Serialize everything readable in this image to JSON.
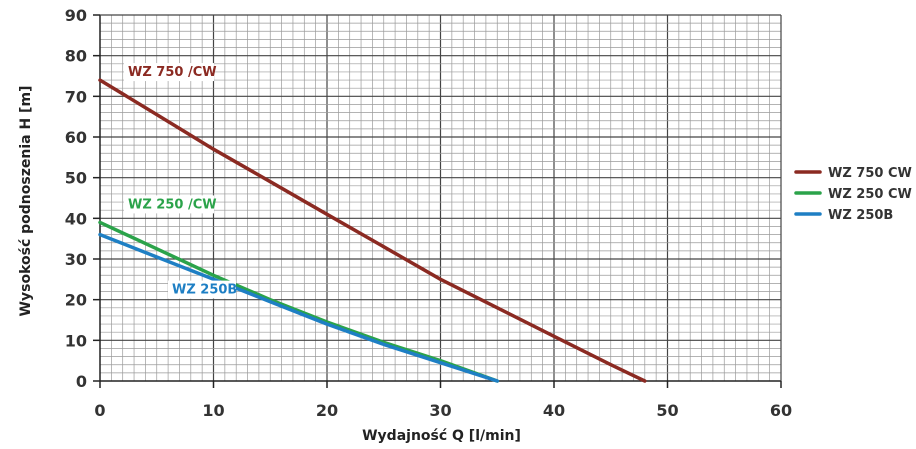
{
  "chart_data": {
    "type": "line",
    "title": "",
    "xlabel": "Wydajność Q [l/min]",
    "ylabel": "Wysokość podnoszenia H [m]",
    "xlim": [
      0,
      60
    ],
    "ylim": [
      0,
      90
    ],
    "x_ticks": [
      "0",
      "10",
      "20",
      "30",
      "40",
      "50",
      "60"
    ],
    "y_ticks": [
      "0",
      "10",
      "20",
      "30",
      "40",
      "50",
      "60",
      "70",
      "80",
      "90"
    ],
    "grid": true,
    "legend_position": "right",
    "series": [
      {
        "name": "WZ 750 CW",
        "callout": "WZ 750 /CW",
        "color": "#8b2a22",
        "x": [
          0,
          5,
          10,
          15,
          20,
          25,
          30,
          35,
          40,
          45,
          48
        ],
        "y": [
          74,
          65.5,
          57,
          49,
          41,
          33,
          25,
          18,
          11,
          4,
          0
        ]
      },
      {
        "name": "WZ 250 CW",
        "callout": "WZ 250 /CW",
        "color": "#2ba34a",
        "x": [
          0,
          5,
          10,
          15,
          20,
          25,
          30,
          35
        ],
        "y": [
          39,
          32.5,
          26,
          20,
          14.5,
          9.5,
          5,
          0
        ]
      },
      {
        "name": "WZ 250B",
        "callout": "WZ 250B",
        "color": "#1e7fc4",
        "x": [
          0,
          5,
          10,
          15,
          20,
          25,
          30,
          35
        ],
        "y": [
          36,
          30.5,
          25,
          19.5,
          14,
          9,
          4.5,
          0
        ]
      }
    ]
  }
}
